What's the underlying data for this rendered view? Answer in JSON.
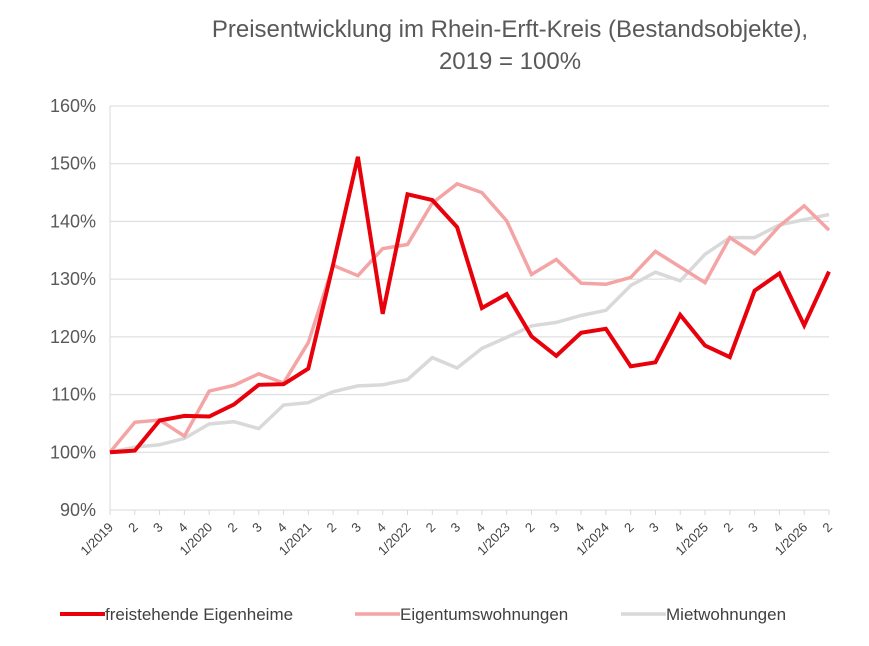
{
  "chart_data": {
    "type": "line",
    "title": "Preisentwicklung im Rhein-Erft-Kreis (Bestandsobjekte),",
    "subtitle": "2019 = 100%",
    "ylim": [
      90,
      160
    ],
    "yticks": [
      "90%",
      "100%",
      "110%",
      "120%",
      "130%",
      "140%",
      "150%",
      "160%"
    ],
    "grid": true,
    "legend_position": "bottom",
    "categories": [
      "1/2019",
      "2",
      "3",
      "4",
      "1/2020",
      "2",
      "3",
      "4",
      "1/2021",
      "2",
      "3",
      "4",
      "1/2022",
      "2",
      "3",
      "4",
      "1/2023",
      "2",
      "3",
      "4",
      "1/2024",
      "2",
      "3",
      "4",
      "1/2025",
      "2",
      "3",
      "4",
      "1/2026",
      "2"
    ],
    "series": [
      {
        "name": "freistehende Eigenheime",
        "color": "#e8000b",
        "values": [
          100,
          100.3,
          105.5,
          106.3,
          106.2,
          108.3,
          111.7,
          111.8,
          114.5,
          132.5,
          151.2,
          124,
          144.7,
          143.7,
          139,
          125,
          127.4,
          120.1,
          116.7,
          120.7,
          121.4,
          114.9,
          115.6,
          123.8,
          118.5,
          116.5,
          128,
          131,
          122,
          131.3
        ]
      },
      {
        "name": "Eigentumswohnungen",
        "color": "#f4a4a4",
        "values": [
          100,
          105.2,
          105.6,
          102.8,
          110.6,
          111.6,
          113.6,
          112,
          119,
          132.4,
          130.6,
          135.3,
          136,
          143.2,
          146.5,
          145,
          140.1,
          130.8,
          133.4,
          129.3,
          129.1,
          130.3,
          134.8,
          132.1,
          129.4,
          137.2,
          134.4,
          139.2,
          142.7,
          138.5
        ]
      },
      {
        "name": "Mietwohnungen",
        "color": "#d9d9d9",
        "values": [
          100,
          100.9,
          101.3,
          102.4,
          104.9,
          105.3,
          104.1,
          108.2,
          108.6,
          110.5,
          111.5,
          111.7,
          112.6,
          116.4,
          114.6,
          118,
          119.9,
          121.9,
          122.5,
          123.7,
          124.6,
          128.9,
          131.2,
          129.7,
          134.3,
          137.2,
          137.2,
          139.4,
          140.3,
          141.2
        ]
      }
    ]
  }
}
